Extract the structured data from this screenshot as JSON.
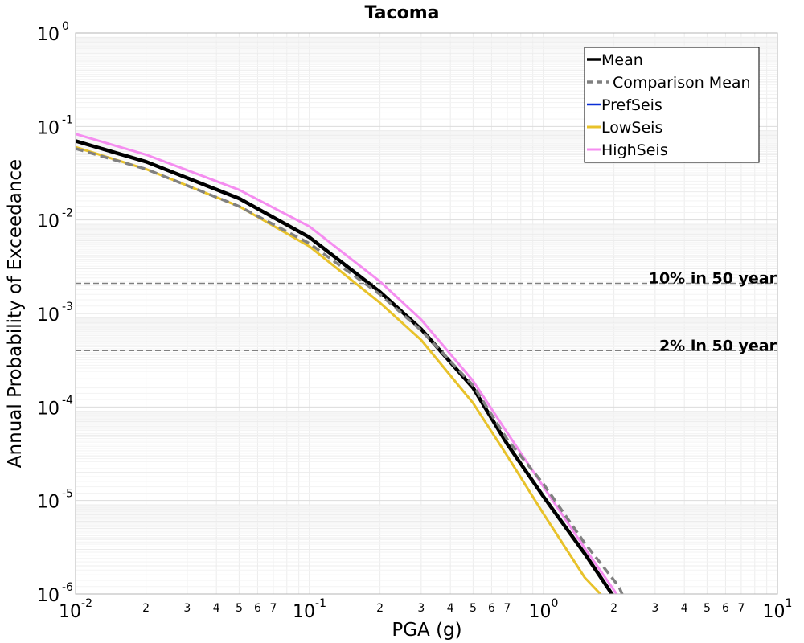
{
  "chart_data": {
    "type": "line",
    "title": "Tacoma",
    "xlabel": "PGA (g)",
    "ylabel": "Annual Probability of Exceedance",
    "x_scale": "log",
    "y_scale": "log",
    "xlim": [
      0.01,
      10
    ],
    "ylim": [
      1e-06,
      1
    ],
    "grid": true,
    "legend_position": "top-right",
    "x_major_ticks": [
      {
        "value": 0.01,
        "base": "10",
        "exp": "-2"
      },
      {
        "value": 0.1,
        "base": "10",
        "exp": "-1"
      },
      {
        "value": 1,
        "base": "10",
        "exp": "0"
      },
      {
        "value": 10,
        "base": "10",
        "exp": "1"
      }
    ],
    "x_minor_tick_labels": [
      "2",
      "3",
      "4",
      "5",
      "6",
      "7"
    ],
    "y_major_ticks": [
      {
        "value": 1,
        "base": "10",
        "exp": "0"
      },
      {
        "value": 0.1,
        "base": "10",
        "exp": "-1"
      },
      {
        "value": 0.01,
        "base": "10",
        "exp": "-2"
      },
      {
        "value": 0.001,
        "base": "10",
        "exp": "-3"
      },
      {
        "value": 0.0001,
        "base": "10",
        "exp": "-4"
      },
      {
        "value": 1e-05,
        "base": "10",
        "exp": "-5"
      },
      {
        "value": 1e-06,
        "base": "10",
        "exp": "-6"
      }
    ],
    "reference_lines": [
      {
        "label": "10% in 50 year",
        "y": 0.0021,
        "color": "#808080"
      },
      {
        "label": "2% in 50 year",
        "y": 0.0004,
        "color": "#808080"
      }
    ],
    "series": [
      {
        "name": "Mean",
        "color": "#000000",
        "dash": "solid",
        "width": 4.5,
        "x": [
          0.01,
          0.02,
          0.05,
          0.1,
          0.2,
          0.3,
          0.5,
          0.7,
          1.0,
          1.5,
          2.0
        ],
        "y": [
          0.07,
          0.042,
          0.017,
          0.0065,
          0.0017,
          0.00068,
          0.00016,
          4e-05,
          1.1e-05,
          2.7e-06,
          9.3e-07
        ]
      },
      {
        "name": "Comparison Mean",
        "color": "#808080",
        "dash": "dashed",
        "width": 3.5,
        "x": [
          0.01,
          0.02,
          0.05,
          0.1,
          0.2,
          0.3,
          0.5,
          0.7,
          1.0,
          1.5,
          2.1,
          2.2
        ],
        "y": [
          0.058,
          0.035,
          0.014,
          0.0056,
          0.0016,
          0.00066,
          0.00017,
          4.5e-05,
          1.5e-05,
          3.5e-06,
          1.2e-06,
          9.2e-07
        ]
      },
      {
        "name": "PrefSeis",
        "color": "#0a2fd6",
        "dash": "solid",
        "width": 2.5,
        "x": [],
        "y": []
      },
      {
        "name": "LowSeis",
        "color": "#e8c22a",
        "dash": "solid",
        "width": 3,
        "x": [
          0.01,
          0.02,
          0.05,
          0.1,
          0.2,
          0.3,
          0.5,
          0.7,
          1.0,
          1.5,
          1.8
        ],
        "y": [
          0.06,
          0.035,
          0.014,
          0.0052,
          0.0013,
          0.00052,
          0.00011,
          3e-05,
          7.2e-06,
          1.5e-06,
          9.3e-07
        ]
      },
      {
        "name": "HighSeis",
        "color": "#f58df0",
        "dash": "solid",
        "width": 3,
        "x": [
          0.01,
          0.02,
          0.05,
          0.1,
          0.2,
          0.3,
          0.5,
          0.7,
          1.0,
          1.5,
          2.0,
          2.1
        ],
        "y": [
          0.083,
          0.05,
          0.021,
          0.0085,
          0.0022,
          0.00086,
          0.00019,
          5.3e-05,
          1.4e-05,
          3.1e-06,
          1.1e-06,
          9.2e-07
        ]
      }
    ]
  }
}
